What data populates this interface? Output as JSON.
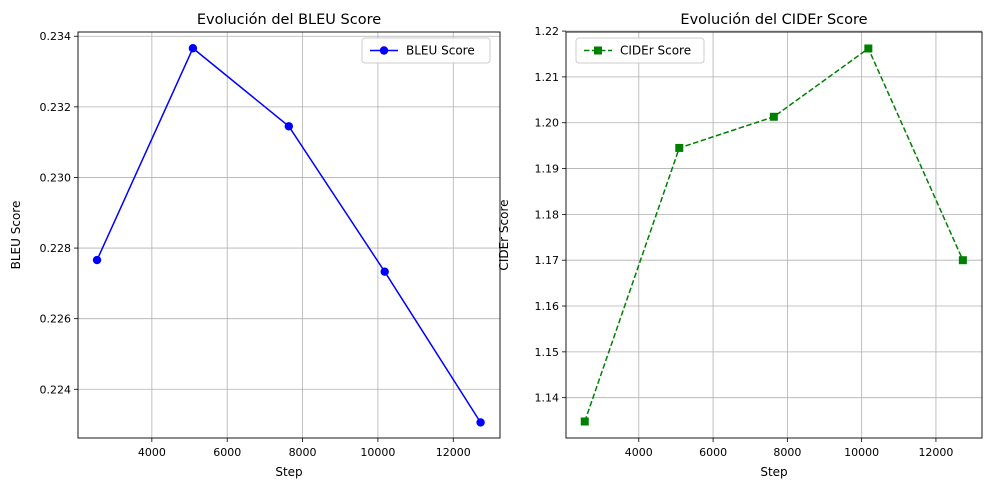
{
  "chart_data": [
    {
      "type": "line",
      "title": "Evolución del BLEU Score",
      "xlabel": "Step",
      "ylabel": "BLEU Score",
      "xlim": [
        2040,
        13240
      ],
      "ylim": [
        0.22262,
        0.23412
      ],
      "xticks": [
        4000,
        6000,
        8000,
        10000,
        12000
      ],
      "yticks": [
        0.224,
        0.226,
        0.228,
        0.23,
        0.232,
        0.234
      ],
      "ytick_decimals": 3,
      "grid": true,
      "legend_position": "upper-right",
      "series": [
        {
          "name": "BLEU Score",
          "color": "#0000ff",
          "marker": "circle",
          "linestyle": "solid",
          "x": [
            2545,
            5090,
            7635,
            10180,
            12725
          ],
          "y": [
            0.22766,
            0.23366,
            0.23145,
            0.22733,
            0.22306
          ]
        }
      ]
    },
    {
      "type": "line",
      "title": "Evolución del CIDEr Score",
      "xlabel": "Step",
      "ylabel": "CIDEr Score",
      "xlim": [
        2040,
        13240
      ],
      "ylim": [
        1.1312,
        1.2198
      ],
      "xticks": [
        4000,
        6000,
        8000,
        10000,
        12000
      ],
      "yticks": [
        1.14,
        1.15,
        1.16,
        1.17,
        1.18,
        1.19,
        1.2,
        1.21,
        1.22
      ],
      "ytick_decimals": 2,
      "grid": true,
      "legend_position": "upper-left",
      "series": [
        {
          "name": "CIDEr Score",
          "color": "#008000",
          "marker": "square",
          "linestyle": "dashed",
          "x": [
            2545,
            5090,
            7635,
            10180,
            12725
          ],
          "y": [
            1.1348,
            1.1945,
            1.2013,
            1.2162,
            1.17
          ]
        }
      ]
    }
  ]
}
